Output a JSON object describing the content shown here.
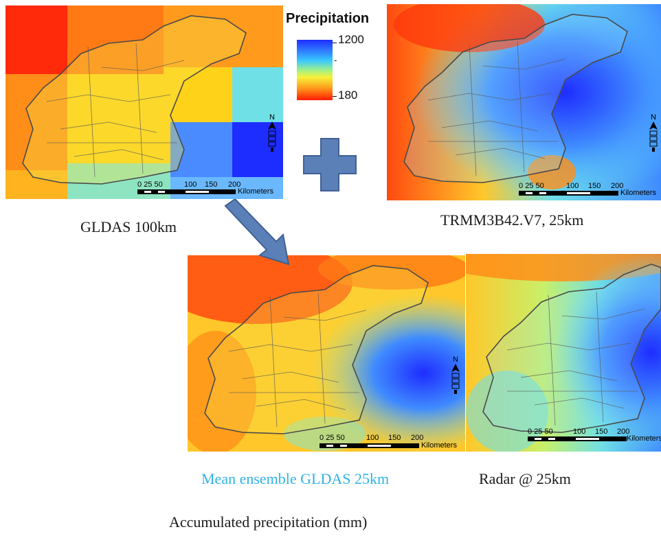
{
  "legend": {
    "title": "Precipitation",
    "max_label": "1200",
    "mid_label": "-",
    "min_label": "180"
  },
  "panels": {
    "gldas": {
      "caption": "GLDAS 100km"
    },
    "trmm": {
      "caption": "TRMM3B42.V7, 25km"
    },
    "ensemble": {
      "caption": "Mean ensemble GLDAS 25km",
      "caption_color": "#2fb3e8"
    },
    "radar": {
      "caption": "Radar @ 25km"
    }
  },
  "scalebar": {
    "ticks": [
      "0",
      "25",
      "50",
      "100",
      "150",
      "200"
    ],
    "unit": "Kilometers"
  },
  "north_label": "N",
  "footer": {
    "text": "Accumulated precipitation (mm)"
  },
  "colors": {
    "high": "#1e2dff",
    "mid_high": "#38c7ff",
    "mid": "#f6f23a",
    "low": "#ff1a00",
    "arrow": "#5b80b8",
    "plus": "#5b80b8"
  }
}
